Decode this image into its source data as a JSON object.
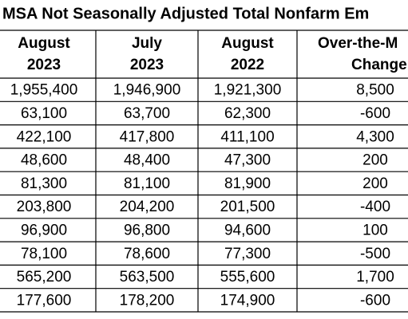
{
  "header": {
    "title": "MSA Not Seasonally Adjusted Total Nonfarm Em"
  },
  "table": {
    "columns": [
      [
        "August",
        "2023"
      ],
      [
        "July",
        "2023"
      ],
      [
        "August",
        "2022"
      ],
      [
        "Over-the-M",
        "Change"
      ]
    ],
    "rows": [
      [
        "1,955,400",
        "1,946,900",
        "1,921,300",
        "8,500"
      ],
      [
        "63,100",
        "63,700",
        "62,300",
        "-600"
      ],
      [
        "422,100",
        "417,800",
        "411,100",
        "4,300"
      ],
      [
        "48,600",
        "48,400",
        "47,300",
        "200"
      ],
      [
        "81,300",
        "81,100",
        "81,900",
        "200"
      ],
      [
        "203,800",
        "204,200",
        "201,500",
        "-400"
      ],
      [
        "96,900",
        "96,800",
        "94,600",
        "100"
      ],
      [
        "78,100",
        "78,600",
        "77,300",
        "-500"
      ],
      [
        "565,200",
        "563,500",
        "555,600",
        "1,700"
      ],
      [
        "177,600",
        "178,200",
        "174,900",
        "-600"
      ]
    ]
  }
}
